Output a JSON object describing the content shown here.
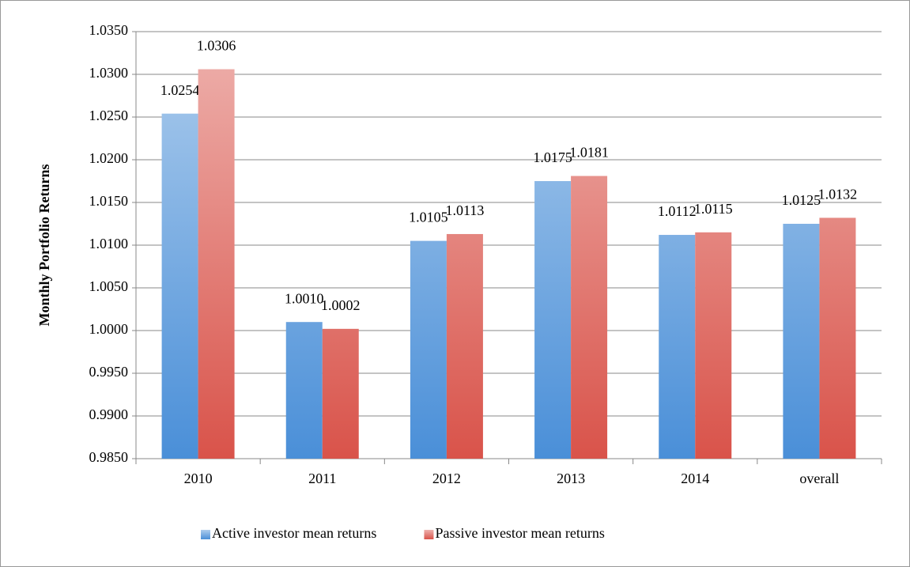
{
  "chart_data": {
    "type": "bar",
    "y_label": "Monthly Portfolio Returns",
    "categories": [
      "2010",
      "2011",
      "2012",
      "2013",
      "2014",
      "overall"
    ],
    "series": [
      {
        "name": "Active investor mean returns",
        "color": "#4a8fd8",
        "values": [
          1.0254,
          1.001,
          1.0105,
          1.0175,
          1.0112,
          1.0125
        ],
        "value_labels": [
          "1.0254",
          "1.0010",
          "1.0105",
          "1.0175",
          "1.0112",
          "1.0125"
        ]
      },
      {
        "name": "Passive investor mean returns",
        "color": "#d9534a",
        "values": [
          1.0306,
          1.0002,
          1.0113,
          1.0181,
          1.0115,
          1.0132
        ],
        "value_labels": [
          "1.0306",
          "1.0002",
          "1.0113",
          "1.0181",
          "1.0115",
          "1.0132"
        ]
      }
    ],
    "ylim": [
      0.985,
      1.035
    ],
    "yticks": [
      {
        "value": 0.985,
        "label": "0.9850"
      },
      {
        "value": 0.99,
        "label": "0.9900"
      },
      {
        "value": 0.995,
        "label": "0.9950"
      },
      {
        "value": 1.0,
        "label": "1.0000"
      },
      {
        "value": 1.005,
        "label": "1.0050"
      },
      {
        "value": 1.01,
        "label": "1.0100"
      },
      {
        "value": 1.015,
        "label": "1.0150"
      },
      {
        "value": 1.02,
        "label": "1.0200"
      },
      {
        "value": 1.025,
        "label": "1.0250"
      },
      {
        "value": 1.03,
        "label": "1.0300"
      },
      {
        "value": 1.035,
        "label": "1.0350"
      }
    ],
    "grid": true,
    "legend": "bottom"
  }
}
